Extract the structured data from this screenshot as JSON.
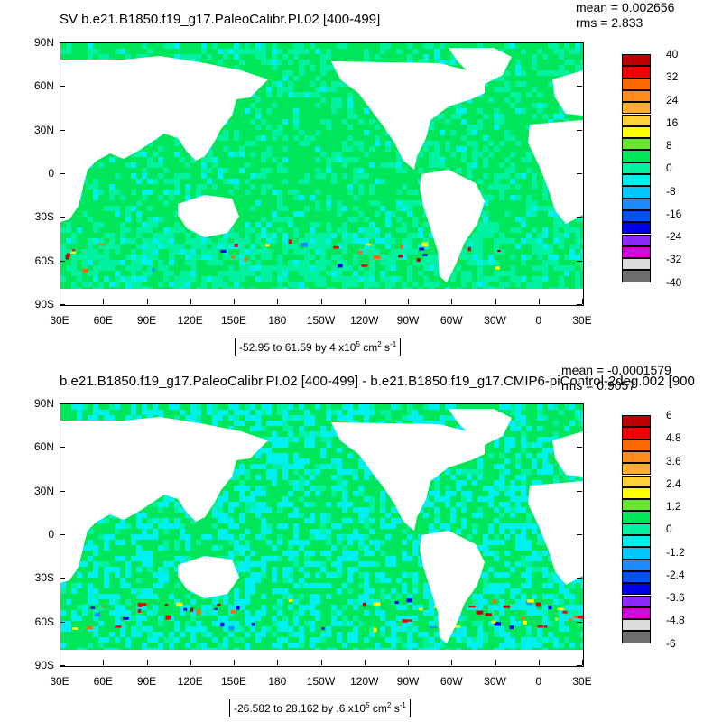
{
  "chart_data": [
    {
      "type": "heatmap",
      "title": "SV b.e21.B1850.f19_g17.PaleoCalibr.PI.02 [400-499]",
      "mean_label": "mean = 0.002656",
      "rms_label": "rms = 2.833",
      "y_ticks": [
        "90N",
        "60N",
        "30N",
        "0",
        "30S",
        "60S",
        "90S"
      ],
      "x_ticks": [
        "30E",
        "60E",
        "90E",
        "120E",
        "150E",
        "180",
        "150W",
        "120W",
        "90W",
        "60W",
        "30W",
        "0",
        "30E"
      ],
      "range_label": "-52.95 to 61.59 by 4 x10",
      "range_exp": "5",
      "range_units": " cm",
      "range_units_exp": "2",
      "range_units_tail": " s",
      "range_units_tail_exp": "-1",
      "colorbar_levels": [
        "40",
        "32",
        "24",
        "16",
        "8",
        "0",
        "-8",
        "-16",
        "-24",
        "-32",
        "-40"
      ],
      "colorbar_colors": [
        "#c00000",
        "#f00000",
        "#ff6a00",
        "#ff8c1a",
        "#ffad33",
        "#ffd23c",
        "#ffff00",
        "#64e632",
        "#00e65a",
        "#00f2a0",
        "#00f0f0",
        "#00c8ff",
        "#1e8cff",
        "#0050ff",
        "#0000e6",
        "#8c28ff",
        "#d800d8",
        "#dcdcdc",
        "#6e6e6e"
      ]
    },
    {
      "type": "heatmap",
      "title": "b.e21.B1850.f19_g17.PaleoCalibr.PI.02 [400-499] - b.e21.B1850.f19_g17.CMIP6-piControl-2deg.002 [900",
      "mean_label": "mean = -0.0001579",
      "rms_label": "rms = 0.9057",
      "y_ticks": [
        "90N",
        "60N",
        "30N",
        "0",
        "30S",
        "60S",
        "90S"
      ],
      "x_ticks": [
        "30E",
        "60E",
        "90E",
        "120E",
        "150E",
        "180",
        "150W",
        "120W",
        "90W",
        "60W",
        "30W",
        "0",
        "30E"
      ],
      "range_label": "-26.582 to 28.162 by .6 x10",
      "range_exp": "5",
      "range_units": " cm",
      "range_units_exp": "2",
      "range_units_tail": " s",
      "range_units_tail_exp": "-1",
      "colorbar_levels": [
        "6",
        "4.8",
        "3.6",
        "2.4",
        "1.2",
        "0",
        "-1.2",
        "-2.4",
        "-3.6",
        "-4.8",
        "-6"
      ],
      "colorbar_colors": [
        "#c00000",
        "#f00000",
        "#ff6a00",
        "#ff8c1a",
        "#ffad33",
        "#ffd23c",
        "#ffff00",
        "#64e632",
        "#00e65a",
        "#00f2a0",
        "#00f0f0",
        "#00c8ff",
        "#1e8cff",
        "#0050ff",
        "#0000e6",
        "#8c28ff",
        "#d800d8",
        "#dcdcdc",
        "#6e6e6e"
      ]
    }
  ]
}
